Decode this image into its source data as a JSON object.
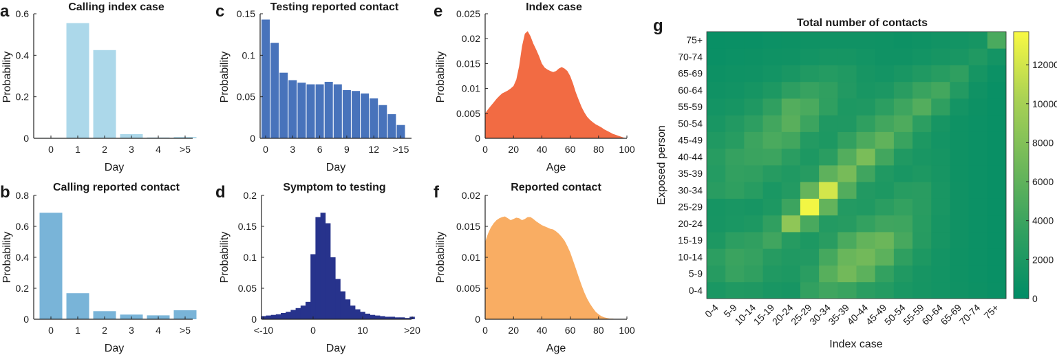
{
  "chart_data": [
    {
      "id": "a",
      "panel_label": "a",
      "type": "bar",
      "title": "Calling index case",
      "xlabel": "Day",
      "ylabel": "Probability",
      "categories": [
        "0",
        "1",
        "2",
        "3",
        "4",
        ">5"
      ],
      "values": [
        0.002,
        0.555,
        0.425,
        0.02,
        0.004,
        0.006
      ],
      "ylim": [
        0,
        0.6
      ],
      "yticks": [
        0,
        0.2,
        0.4,
        0.6
      ],
      "ytick_labels": [
        "0",
        "0.2",
        "0.4",
        "0.6"
      ],
      "color": "#acd8ea"
    },
    {
      "id": "b",
      "panel_label": "b",
      "type": "bar",
      "title": "Calling reported contact",
      "xlabel": "Day",
      "ylabel": "Probability",
      "categories": [
        "0",
        "1",
        "2",
        "3",
        "4",
        ">5"
      ],
      "values": [
        0.688,
        0.168,
        0.052,
        0.03,
        0.025,
        0.058
      ],
      "ylim": [
        0,
        0.8
      ],
      "yticks": [
        0,
        0.2,
        0.4,
        0.6,
        0.8
      ],
      "ytick_labels": [
        "0",
        "0.2",
        "0.4",
        "0.6",
        "0.8"
      ],
      "color": "#79b4d8"
    },
    {
      "id": "c",
      "panel_label": "c",
      "type": "bar",
      "title": "Testing reported contact",
      "xlabel": "Day",
      "ylabel": "Probability",
      "x": [
        0,
        1,
        2,
        3,
        4,
        5,
        6,
        7,
        8,
        9,
        10,
        11,
        12,
        13,
        14,
        15
      ],
      "values": [
        0.143,
        0.115,
        0.079,
        0.07,
        0.067,
        0.065,
        0.065,
        0.068,
        0.065,
        0.058,
        0.057,
        0.054,
        0.048,
        0.04,
        0.029,
        0.016
      ],
      "xticks": [
        0,
        3,
        6,
        9,
        12,
        15
      ],
      "xtick_labels": [
        "0",
        "3",
        "6",
        "9",
        "12",
        ">15"
      ],
      "ylim": [
        0,
        0.15
      ],
      "yticks": [
        0,
        0.05,
        0.1,
        0.15
      ],
      "ytick_labels": [
        "0",
        "0.05",
        "0.1",
        "0.15"
      ],
      "color": "#4873bb"
    },
    {
      "id": "d",
      "panel_label": "d",
      "type": "bar",
      "title": "Symptom to testing",
      "xlabel": "Day",
      "ylabel": "Probability",
      "x": [
        -10,
        -9,
        -8,
        -7,
        -6,
        -5,
        -4,
        -3,
        -2,
        -1,
        0,
        1,
        2,
        3,
        4,
        5,
        6,
        7,
        8,
        9,
        10,
        11,
        12,
        13,
        14,
        15,
        16,
        17,
        18,
        19,
        20
      ],
      "values": [
        0.005,
        0.006,
        0.007,
        0.008,
        0.01,
        0.012,
        0.015,
        0.018,
        0.022,
        0.028,
        0.105,
        0.165,
        0.172,
        0.155,
        0.1,
        0.065,
        0.045,
        0.032,
        0.022,
        0.016,
        0.012,
        0.009,
        0.007,
        0.006,
        0.005,
        0.004,
        0.004,
        0.003,
        0.003,
        0.002,
        0.004
      ],
      "xticks": [
        -10,
        0,
        10,
        20
      ],
      "xtick_labels": [
        "<-10",
        "0",
        "10",
        ">20"
      ],
      "ylim": [
        0,
        0.2
      ],
      "yticks": [
        0,
        0.05,
        0.1,
        0.15,
        0.2
      ],
      "ytick_labels": [
        "0",
        "0.05",
        "0.1",
        "0.15",
        "0.2"
      ],
      "color": "#27338c"
    },
    {
      "id": "e",
      "panel_label": "e",
      "type": "area",
      "title": "Index case",
      "xlabel": "Age",
      "ylabel": "Probability",
      "x": [
        0,
        2,
        4,
        6,
        8,
        10,
        12,
        14,
        16,
        18,
        20,
        22,
        24,
        26,
        28,
        30,
        32,
        34,
        36,
        38,
        40,
        42,
        44,
        46,
        48,
        50,
        52,
        54,
        56,
        58,
        60,
        62,
        64,
        66,
        68,
        70,
        72,
        74,
        76,
        78,
        80,
        82,
        84,
        86,
        88,
        90,
        92,
        94,
        96,
        98,
        100
      ],
      "values": [
        0.005,
        0.0058,
        0.0065,
        0.0072,
        0.0079,
        0.0085,
        0.009,
        0.0093,
        0.0096,
        0.01,
        0.0105,
        0.0118,
        0.0145,
        0.0185,
        0.021,
        0.0215,
        0.0205,
        0.019,
        0.0178,
        0.0165,
        0.015,
        0.0142,
        0.0138,
        0.0135,
        0.0133,
        0.0135,
        0.014,
        0.0143,
        0.014,
        0.0135,
        0.0125,
        0.011,
        0.0092,
        0.0077,
        0.0063,
        0.0052,
        0.0043,
        0.0037,
        0.0032,
        0.0028,
        0.0025,
        0.0022,
        0.0018,
        0.0015,
        0.0012,
        0.0009,
        0.0007,
        0.0005,
        0.0003,
        0.0001,
        0
      ],
      "xticks": [
        0,
        20,
        40,
        60,
        80,
        100
      ],
      "xtick_labels": [
        "0",
        "20",
        "40",
        "60",
        "80",
        "100"
      ],
      "ylim": [
        0,
        0.025
      ],
      "yticks": [
        0,
        0.005,
        0.01,
        0.015,
        0.02,
        0.025
      ],
      "ytick_labels": [
        "0",
        "0.005",
        "0.01",
        "0.015",
        "0.02",
        "0.025"
      ],
      "color": "#f26b43"
    },
    {
      "id": "f",
      "panel_label": "f",
      "type": "area",
      "title": "Reported contact",
      "xlabel": "Age",
      "ylabel": "Probability",
      "x": [
        0,
        2,
        4,
        6,
        8,
        10,
        12,
        14,
        16,
        18,
        20,
        22,
        24,
        26,
        28,
        30,
        32,
        34,
        36,
        38,
        40,
        42,
        44,
        46,
        48,
        50,
        52,
        54,
        56,
        58,
        60,
        62,
        64,
        66,
        68,
        70,
        72,
        74,
        76,
        78,
        80,
        82,
        84,
        86,
        88,
        90,
        92,
        94,
        96,
        98,
        100
      ],
      "values": [
        0.0125,
        0.0138,
        0.0148,
        0.0155,
        0.016,
        0.0163,
        0.0165,
        0.0166,
        0.0163,
        0.016,
        0.0162,
        0.0164,
        0.0163,
        0.016,
        0.0162,
        0.0165,
        0.0165,
        0.0162,
        0.0158,
        0.0155,
        0.0152,
        0.015,
        0.0148,
        0.0146,
        0.0145,
        0.0142,
        0.0138,
        0.0133,
        0.0127,
        0.0118,
        0.0108,
        0.0095,
        0.0082,
        0.0068,
        0.0055,
        0.0043,
        0.0033,
        0.0025,
        0.0018,
        0.0012,
        0.0008,
        0.0005,
        0.0003,
        0.0002,
        0.0001,
        0.0001,
        0,
        0,
        0,
        0,
        0
      ],
      "xticks": [
        0,
        20,
        40,
        60,
        80,
        100
      ],
      "xtick_labels": [
        "0",
        "20",
        "40",
        "60",
        "80",
        "100"
      ],
      "ylim": [
        0,
        0.02
      ],
      "yticks": [
        0,
        0.005,
        0.01,
        0.015,
        0.02
      ],
      "ytick_labels": [
        "0",
        "0.005",
        "0.01",
        "0.015",
        "0.02"
      ],
      "color": "#f9ad63"
    },
    {
      "id": "g",
      "panel_label": "g",
      "type": "heatmap",
      "title": "Total number of contacts",
      "xlabel": "Index case",
      "ylabel": "Exposed person",
      "categories": [
        "0-4",
        "5-9",
        "10-14",
        "15-19",
        "20-24",
        "25-29",
        "30-34",
        "35-39",
        "40-44",
        "45-49",
        "50-54",
        "55-59",
        "60-64",
        "65-69",
        "70-74",
        "75+"
      ],
      "values": [
        [
          1800,
          2200,
          2100,
          1700,
          1600,
          3400,
          4200,
          3800,
          2900,
          2500,
          1800,
          1500,
          1300,
          1100,
          900,
          700
        ],
        [
          2600,
          3700,
          3300,
          2200,
          2000,
          2900,
          5500,
          7000,
          5800,
          3500,
          2200,
          1600,
          1300,
          1000,
          800,
          600
        ],
        [
          3000,
          3900,
          3600,
          2600,
          2200,
          2300,
          4500,
          6500,
          7000,
          5800,
          3200,
          2000,
          1400,
          1000,
          800,
          600
        ],
        [
          2000,
          3000,
          3300,
          4200,
          2600,
          2000,
          2800,
          4800,
          6200,
          6600,
          4600,
          2600,
          1600,
          1100,
          800,
          600
        ],
        [
          1600,
          1800,
          2000,
          3300,
          8700,
          4700,
          2400,
          2600,
          3500,
          4200,
          4100,
          2700,
          1600,
          1100,
          800,
          600
        ],
        [
          1500,
          1700,
          1600,
          2000,
          4000,
          13400,
          6200,
          2400,
          2200,
          2900,
          3500,
          2800,
          1700,
          1100,
          800,
          600
        ],
        [
          2800,
          3200,
          2700,
          1800,
          2400,
          6300,
          12000,
          5200,
          2300,
          2000,
          2700,
          2800,
          1700,
          1100,
          800,
          600
        ],
        [
          2500,
          3400,
          3300,
          2600,
          2200,
          2600,
          5900,
          7300,
          4200,
          2200,
          1700,
          2000,
          1600,
          1000,
          800,
          600
        ],
        [
          2700,
          3600,
          3900,
          4000,
          2900,
          2000,
          2900,
          5300,
          7500,
          4300,
          2200,
          1700,
          1500,
          1000,
          800,
          600
        ],
        [
          2200,
          2700,
          4000,
          4800,
          4300,
          2400,
          2000,
          3400,
          4900,
          6000,
          3800,
          2000,
          1400,
          1000,
          800,
          600
        ],
        [
          1700,
          2300,
          3100,
          4300,
          5600,
          4000,
          2100,
          2100,
          3200,
          4300,
          5000,
          3000,
          1600,
          1000,
          800,
          600
        ],
        [
          1400,
          1600,
          2100,
          3300,
          5300,
          4800,
          3200,
          2000,
          2100,
          3000,
          4100,
          5300,
          3200,
          1400,
          900,
          600
        ],
        [
          1100,
          1200,
          1500,
          2000,
          3100,
          3700,
          3300,
          2300,
          1700,
          1900,
          2800,
          3800,
          4400,
          2400,
          1100,
          600
        ],
        [
          900,
          1000,
          1100,
          1300,
          1700,
          2200,
          2500,
          2200,
          1600,
          1400,
          1700,
          2200,
          2700,
          3200,
          1500,
          800
        ],
        [
          700,
          800,
          900,
          1000,
          1100,
          1300,
          1500,
          1500,
          1300,
          1100,
          1100,
          1300,
          1600,
          1700,
          2200,
          1400
        ],
        [
          600,
          700,
          700,
          800,
          900,
          1000,
          1100,
          1100,
          1100,
          1000,
          900,
          1000,
          1200,
          1300,
          1500,
          4800
        ]
      ],
      "colorbar_ticks": [
        0,
        2000,
        4000,
        6000,
        8000,
        10000,
        12000
      ],
      "colorbar_tick_labels": [
        "0",
        "2000",
        "4000",
        "6000",
        "8000",
        "10000",
        "12000"
      ],
      "colorbar_range": [
        0,
        13700
      ],
      "colormap": [
        "#008c66",
        "#32a060",
        "#6fb85a",
        "#aad254",
        "#f9f943"
      ]
    }
  ]
}
